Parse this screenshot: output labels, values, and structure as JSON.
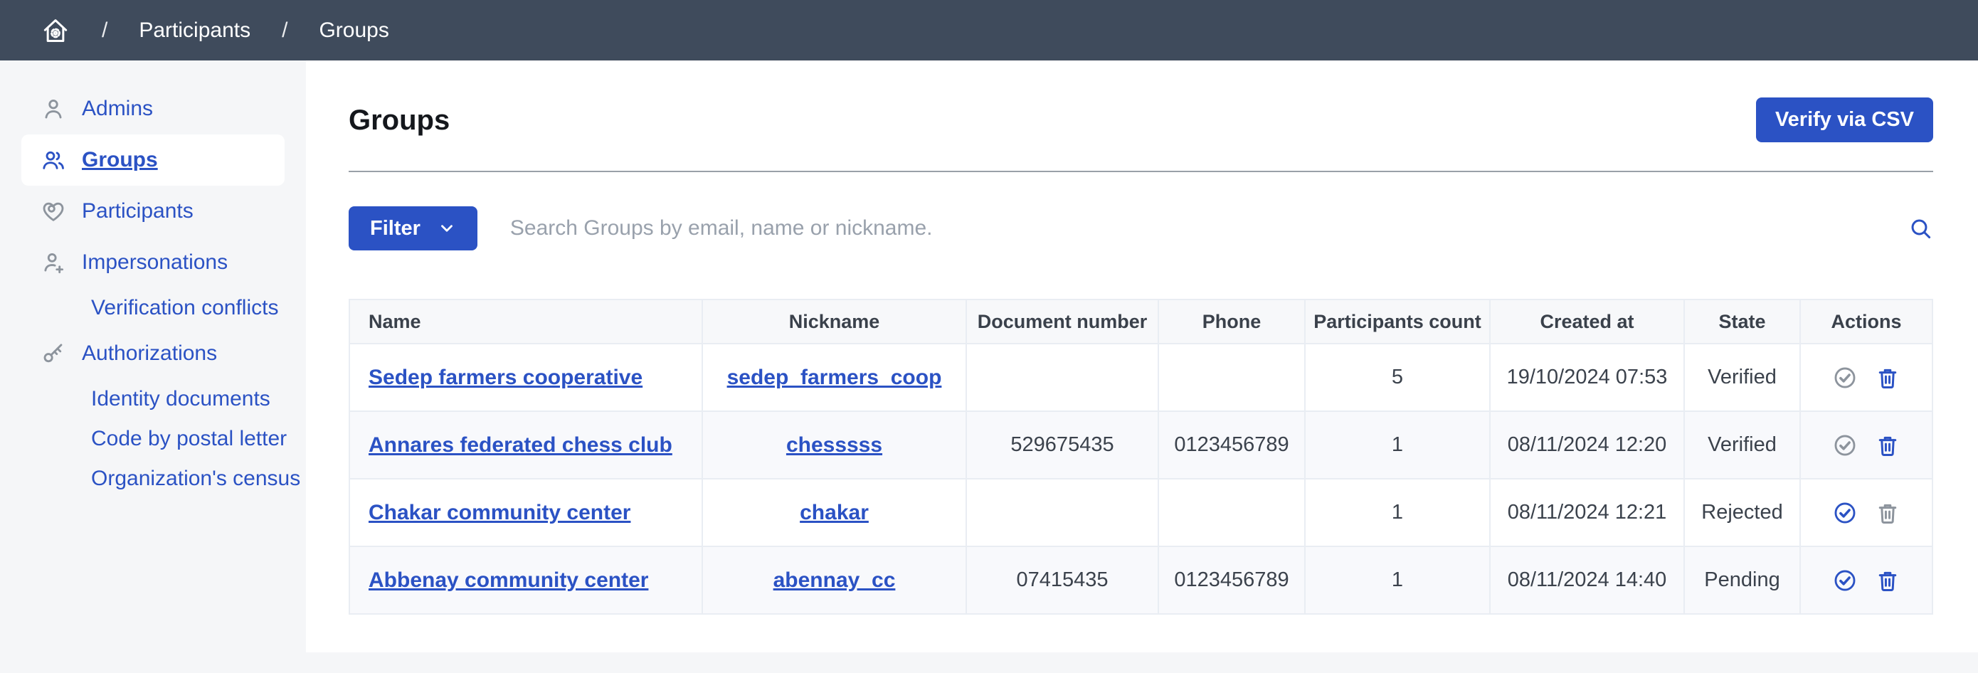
{
  "breadcrumb": {
    "separator": "/",
    "items": [
      {
        "label": "Participants"
      },
      {
        "label": "Groups"
      }
    ]
  },
  "sidebar": {
    "items": [
      {
        "label": "Admins",
        "icon": "user-icon",
        "active": false,
        "sub": false
      },
      {
        "label": "Groups",
        "icon": "group-icon",
        "active": true,
        "sub": false
      },
      {
        "label": "Participants",
        "icon": "heart-icon",
        "active": false,
        "sub": false
      },
      {
        "label": "Impersonations",
        "icon": "user-add-icon",
        "active": false,
        "sub": false
      },
      {
        "label": "Verification conflicts",
        "icon": null,
        "active": false,
        "sub": true
      },
      {
        "label": "Authorizations",
        "icon": "key-icon",
        "active": false,
        "sub": false
      },
      {
        "label": "Identity documents",
        "icon": null,
        "active": false,
        "sub": true
      },
      {
        "label": "Code by postal letter",
        "icon": null,
        "active": false,
        "sub": true
      },
      {
        "label": "Organization's census",
        "icon": null,
        "active": false,
        "sub": true
      }
    ]
  },
  "header": {
    "title": "Groups",
    "verify_button": "Verify via CSV"
  },
  "filter": {
    "button_label": "Filter",
    "search_placeholder": "Search Groups by email, name or nickname."
  },
  "table": {
    "columns": [
      "Name",
      "Nickname",
      "Document number",
      "Phone",
      "Participants count",
      "Created at",
      "State",
      "Actions"
    ],
    "rows": [
      {
        "name": "Sedep farmers cooperative",
        "nickname": "sedep_farmers_coop",
        "document_number": "",
        "phone": "",
        "participants_count": "5",
        "created_at": "19/10/2024 07:53",
        "state": "Verified",
        "verify_enabled": false,
        "delete_enabled": true
      },
      {
        "name": "Annares federated chess club",
        "nickname": "chesssss",
        "document_number": "529675435",
        "phone": "0123456789",
        "participants_count": "1",
        "created_at": "08/11/2024 12:20",
        "state": "Verified",
        "verify_enabled": false,
        "delete_enabled": true
      },
      {
        "name": "Chakar community center",
        "nickname": "chakar",
        "document_number": "",
        "phone": "",
        "participants_count": "1",
        "created_at": "08/11/2024 12:21",
        "state": "Rejected",
        "verify_enabled": true,
        "delete_enabled": false
      },
      {
        "name": "Abbenay community center",
        "nickname": "abennay_cc",
        "document_number": "07415435",
        "phone": "0123456789",
        "participants_count": "1",
        "created_at": "08/11/2024 14:40",
        "state": "Pending",
        "verify_enabled": true,
        "delete_enabled": true
      }
    ]
  },
  "colors": {
    "accent": "#2b52c4",
    "topbar": "#3f4b5c",
    "disabled_icon": "#8d949d"
  }
}
